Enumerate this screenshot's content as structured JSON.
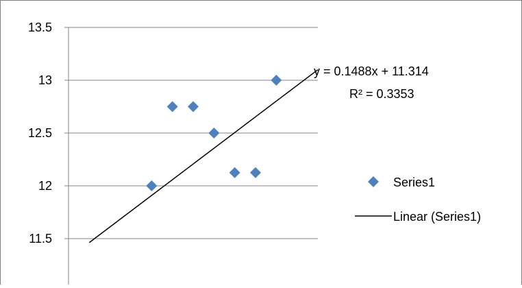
{
  "chart_data": {
    "type": "scatter",
    "title": "",
    "xlabel": "",
    "ylabel": "",
    "ylim": [
      11.05,
      13.5
    ],
    "xlim": [
      0,
      12
    ],
    "y_ticks": [
      "13.5",
      "13",
      "12.5",
      "12",
      "11.5"
    ],
    "grid": true,
    "legend": "right",
    "series": [
      {
        "name": "Series1",
        "marker": "diamond",
        "color": "#4f81bd",
        "points": [
          {
            "x": 4,
            "y": 12.0
          },
          {
            "x": 5,
            "y": 12.75
          },
          {
            "x": 6,
            "y": 12.75
          },
          {
            "x": 7,
            "y": 12.5
          },
          {
            "x": 8,
            "y": 12.125
          },
          {
            "x": 9,
            "y": 12.125
          },
          {
            "x": 10,
            "y": 13.0
          }
        ]
      }
    ],
    "trendline": {
      "name": "Linear (Series1)",
      "slope": 0.1488,
      "intercept": 11.314,
      "x_range": [
        1,
        12
      ],
      "color": "#000000"
    },
    "annotations": {
      "equation": "y = 0.1488x + 11.314",
      "r_squared": "R² = 0.3353"
    }
  },
  "legend": {
    "series_label": "Series1",
    "trend_label": "Linear (Series1)"
  }
}
